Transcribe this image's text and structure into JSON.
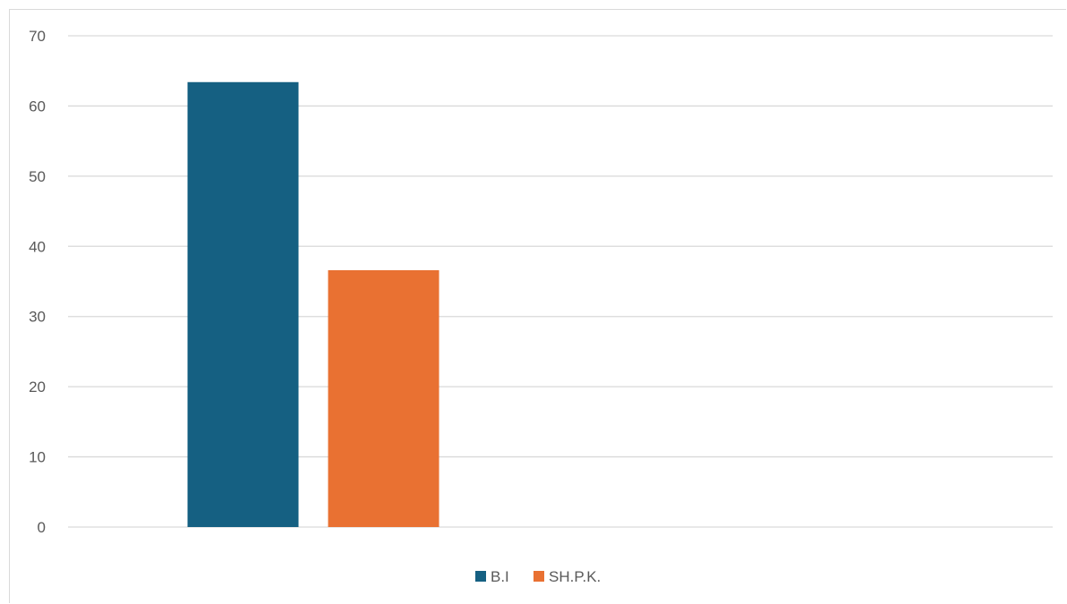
{
  "chart_data": {
    "type": "bar",
    "categories": [
      ""
    ],
    "series": [
      {
        "name": "B.I",
        "values": [
          63.4
        ],
        "color": "#156082"
      },
      {
        "name": "SH.P.K.",
        "values": [
          36.6
        ],
        "color": "#E97132"
      }
    ],
    "title": "",
    "xlabel": "",
    "ylabel": "",
    "ylim": [
      0,
      70
    ],
    "yticks": [
      "0",
      "10",
      "20",
      "30",
      "40",
      "50",
      "60",
      "70"
    ],
    "grid": true,
    "legend_position": "bottom"
  }
}
